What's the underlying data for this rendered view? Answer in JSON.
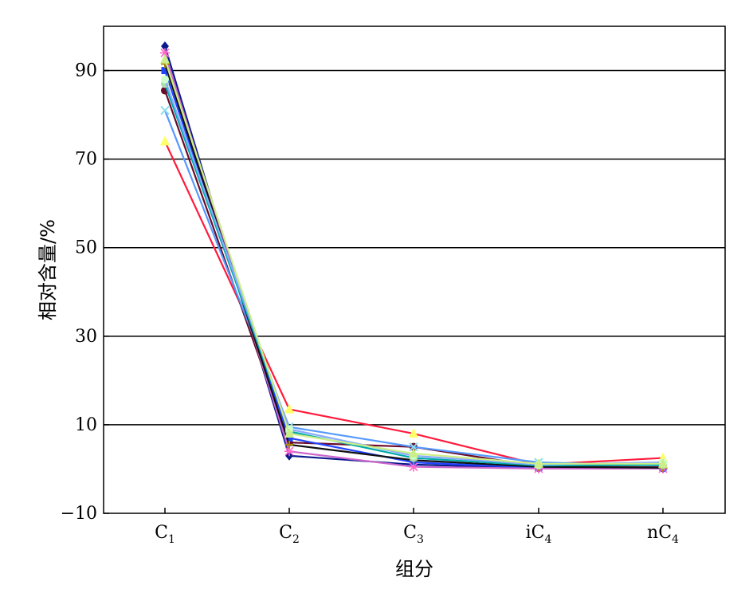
{
  "chart_data": {
    "type": "line",
    "title": "",
    "xlabel": "组分",
    "ylabel": "相对含量/%",
    "categories": [
      {
        "base": "C",
        "sub": "1",
        "full": "C1"
      },
      {
        "base": "C",
        "sub": "2",
        "full": "C2"
      },
      {
        "base": "C",
        "sub": "3",
        "full": "C3"
      },
      {
        "base": "iC",
        "sub": "4",
        "full": "iC4"
      },
      {
        "base": "nC",
        "sub": "4",
        "full": "nC4"
      }
    ],
    "ylim": [
      -10,
      100
    ],
    "yticks": [
      "−10",
      "10",
      "30",
      "50",
      "70",
      "90"
    ],
    "ytick_values": [
      -10,
      10,
      30,
      50,
      70,
      90
    ],
    "grid": "horizontal",
    "legend": "none",
    "series": [
      {
        "color": "#ff1a3c",
        "marker": "triangle",
        "markerColor": "#ffff66",
        "values": [
          74,
          13.5,
          8,
          1,
          2.5
        ]
      },
      {
        "color": "#0a1a8c",
        "marker": "diamond",
        "markerColor": "#0a1a8c",
        "values": [
          95.5,
          3,
          1,
          0.2,
          0.1
        ]
      },
      {
        "color": "#6b0a2a",
        "marker": "circle",
        "markerColor": "#6b0a2a",
        "values": [
          85.5,
          6,
          5,
          0.6,
          0.4
        ]
      },
      {
        "color": "#5599ff",
        "marker": "cross",
        "markerColor": "#88ddee",
        "values": [
          81,
          9.5,
          5,
          1.5,
          0.8
        ]
      },
      {
        "color": "#2244ff",
        "marker": "square",
        "markerColor": "#2244ff",
        "values": [
          90,
          7,
          1.5,
          0.3,
          0.2
        ]
      },
      {
        "color": "#cc66cc",
        "marker": "star",
        "markerColor": "#ff66cc",
        "values": [
          94,
          4,
          0.5,
          0.1,
          0.1
        ]
      },
      {
        "color": "#111111",
        "marker": "plus",
        "markerColor": "#aa8800",
        "values": [
          91.5,
          5.5,
          2,
          0.5,
          0.3
        ]
      },
      {
        "color": "#00aaaa",
        "marker": "circle",
        "markerColor": "#aaddaa",
        "values": [
          87,
          8.5,
          2.5,
          0.8,
          0.9
        ]
      },
      {
        "color": "#88aaff",
        "marker": "circle",
        "markerColor": "#ccffcc",
        "values": [
          88,
          9,
          3,
          1,
          1.5
        ]
      },
      {
        "color": "#ccee88",
        "marker": "triangle",
        "markerColor": "#ccee88",
        "values": [
          92.5,
          8,
          3.5,
          1.2,
          1.2
        ]
      }
    ]
  }
}
